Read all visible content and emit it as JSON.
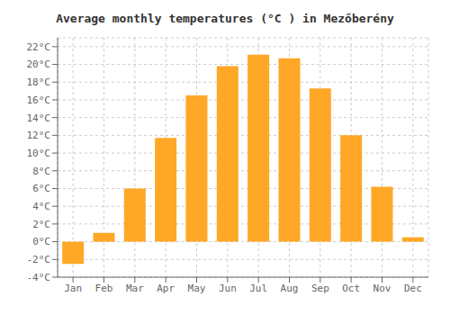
{
  "chart_data": {
    "type": "bar",
    "title": "Average monthly temperatures (°C ) in Mezőberény",
    "categories": [
      "Jan",
      "Feb",
      "Mar",
      "Apr",
      "May",
      "Jun",
      "Jul",
      "Aug",
      "Sep",
      "Oct",
      "Nov",
      "Dec"
    ],
    "values": [
      -2.5,
      1.0,
      6.0,
      11.7,
      16.5,
      19.8,
      21.1,
      20.7,
      17.3,
      12.0,
      6.2,
      0.5
    ],
    "color": "#FFA726",
    "ylim": [
      -4,
      23
    ],
    "yticks": [
      {
        "value": -4,
        "label": "-4°C"
      },
      {
        "value": -2,
        "label": "-2°C"
      },
      {
        "value": 0,
        "label": "0°C"
      },
      {
        "value": 2,
        "label": "2°C"
      },
      {
        "value": 4,
        "label": "4°C"
      },
      {
        "value": 6,
        "label": "6°C"
      },
      {
        "value": 8,
        "label": "8°C"
      },
      {
        "value": 10,
        "label": "10°C"
      },
      {
        "value": 12,
        "label": "12°C"
      },
      {
        "value": 14,
        "label": "14°C"
      },
      {
        "value": 16,
        "label": "16°C"
      },
      {
        "value": 18,
        "label": "18°C"
      },
      {
        "value": 20,
        "label": "20°C"
      },
      {
        "value": 22,
        "label": "22°C"
      }
    ],
    "grid": true
  }
}
